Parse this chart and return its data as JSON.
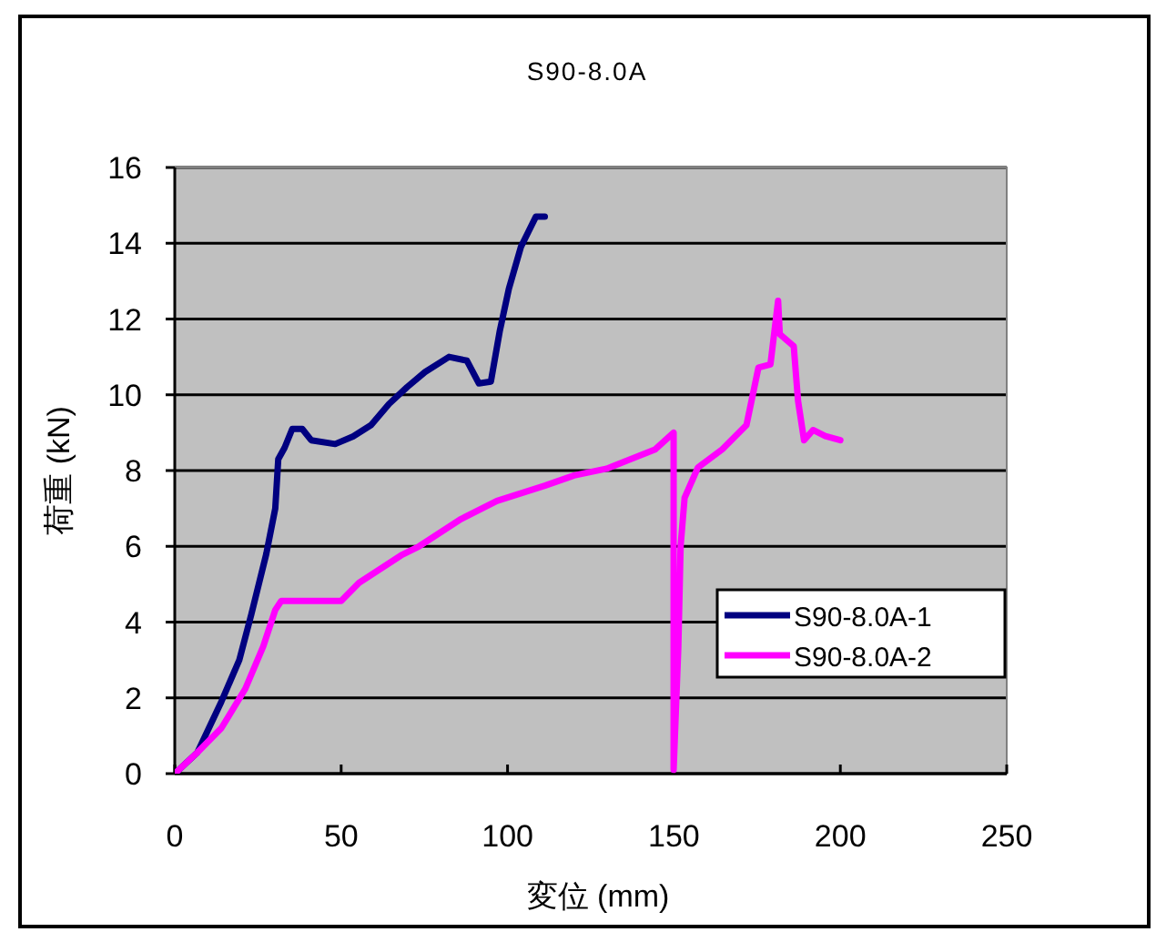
{
  "chart_data": {
    "type": "line",
    "title": "S90-8.0A",
    "xlabel": "変位 (mm)",
    "ylabel": "荷重 (kN)",
    "xlim": [
      0,
      250
    ],
    "xticks": [
      0,
      50,
      100,
      150,
      200,
      250
    ],
    "ylim": [
      0,
      16
    ],
    "yticks": [
      0,
      2,
      4,
      6,
      8,
      10,
      12,
      14,
      16
    ],
    "grid": "y",
    "legend": "bottom right",
    "marker": "none",
    "line_style": "solid",
    "series": [
      {
        "name": "S90-8.0A-1",
        "color": "#000080",
        "x": [
          0,
          6.8,
          14,
          19.4,
          23,
          27.5,
          30.2,
          31.1,
          33,
          35.3,
          38.3,
          41,
          48.2,
          53.6,
          59,
          64.4,
          69.8,
          75.2,
          82.4,
          87.8,
          91.4,
          95,
          97.7,
          100.4,
          104,
          108.5,
          111.2
        ],
        "values": [
          0,
          0.56,
          1.9,
          3.0,
          4.2,
          5.8,
          7.0,
          8.3,
          8.6,
          9.1,
          9.1,
          8.8,
          8.7,
          8.9,
          9.2,
          9.76,
          10.2,
          10.6,
          11.0,
          10.9,
          10.3,
          10.35,
          11.7,
          12.8,
          13.9,
          14.7,
          14.7
        ]
      },
      {
        "name": "S90-8.0A-2",
        "color": "#ff00ff",
        "x": [
          0,
          6.8,
          14,
          21.2,
          26.6,
          30.2,
          32,
          50,
          55.4,
          68,
          73.4,
          86,
          96.8,
          111.2,
          120,
          129.8,
          144.4,
          149.9,
          149.9,
          151.3,
          152,
          153.2,
          157.2,
          164.5,
          171.8,
          175.4,
          179,
          181.3,
          181.8,
          186,
          187.3,
          189.1,
          191.8,
          195.5,
          200
        ],
        "values": [
          0,
          0.56,
          1.2,
          2.24,
          3.36,
          4.32,
          4.56,
          4.56,
          5.04,
          5.76,
          6.0,
          6.72,
          7.2,
          7.6,
          7.87,
          8.05,
          8.56,
          9.0,
          0.1,
          3.3,
          6.0,
          7.28,
          8.08,
          8.56,
          9.2,
          10.72,
          10.8,
          12.48,
          11.6,
          11.28,
          9.84,
          8.8,
          9.07,
          8.91,
          8.8
        ]
      }
    ]
  }
}
